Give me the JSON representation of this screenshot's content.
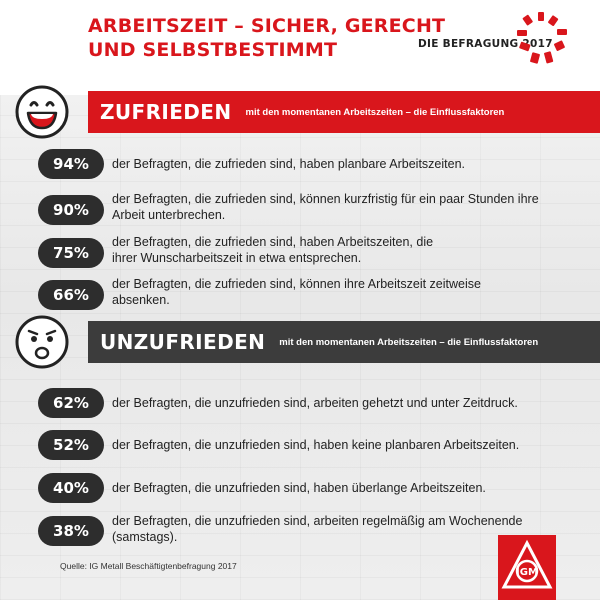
{
  "header": {
    "title_line1": "ARBEITSZEIT – SICHER, GERECHT",
    "title_line2": "UND SELBSTBESTIMMT",
    "survey_label": "DIE BEFRAGUNG 2017"
  },
  "colors": {
    "accent": "#d9161c",
    "dark": "#3c3c3c",
    "pill": "#2d2d2d"
  },
  "satisfied": {
    "icon": "smiley-happy-icon",
    "title": "ZUFRIEDEN",
    "subtitle": "mit den momentanen Arbeitszeiten – die Einflussfaktoren",
    "items": [
      {
        "pct": "94%",
        "text": "der Befragten, die zufrieden sind, haben planbare Arbeitszeiten."
      },
      {
        "pct": "90%",
        "text": "der Befragten, die zufrieden sind, können kurzfristig für ein paar Stunden ihre Arbeit unterbrechen."
      },
      {
        "pct": "75%",
        "text": "der Befragten, die zufrieden sind, haben Arbeitszeiten, die ihrer Wunscharbeitszeit in etwa entsprechen."
      },
      {
        "pct": "66%",
        "text": "der Befragten, die zufrieden sind, können ihre Arbeitszeit zeitweise absenken."
      }
    ]
  },
  "dissatisfied": {
    "icon": "smiley-sad-icon",
    "title": "UNZUFRIEDEN",
    "subtitle": "mit den momentanen Arbeitszeiten – die Einflussfaktoren",
    "items": [
      {
        "pct": "62%",
        "text": "der Befragten, die unzufrieden sind, arbeiten gehetzt und unter Zeitdruck."
      },
      {
        "pct": "52%",
        "text": "der Befragten, die unzufrieden sind, haben keine planbaren Arbeitszeiten."
      },
      {
        "pct": "40%",
        "text": "der Befragten, die unzufrieden sind, haben überlange Arbeitszeiten."
      },
      {
        "pct": "38%",
        "text": "der Befragten, die unzufrieden sind, arbeiten regelmäßig am Wochenende (samstags)."
      }
    ]
  },
  "source": "Quelle: IG Metall Beschäftigtenbefragung 2017",
  "logo": {
    "icon": "ig-metall-logo-icon",
    "letters": "IGM"
  }
}
